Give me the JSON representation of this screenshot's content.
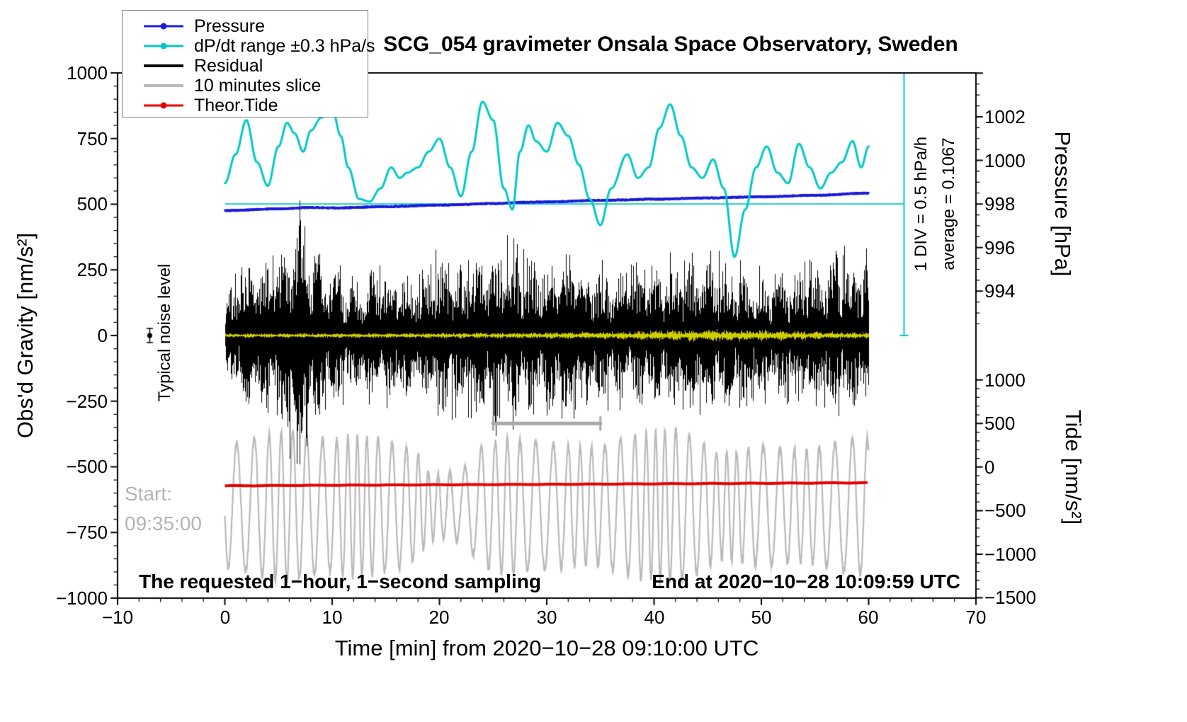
{
  "legend": {
    "items": [
      {
        "label": "Pressure",
        "color": "#1c1cdc",
        "marker": "dot"
      },
      {
        "label": "dP/dt range ±0.3 hPa/s",
        "color": "#00c8c8",
        "marker": "dot"
      },
      {
        "label": "Residual",
        "color": "#000000",
        "marker": "line"
      },
      {
        "label": "10 minutes slice",
        "color": "#b9b9b9",
        "marker": "line"
      },
      {
        "label": "Theor.Tide",
        "color": "#e80000",
        "marker": "dot"
      }
    ]
  },
  "annotations": {
    "noise_label": "Typical noise level",
    "start": {
      "line1": "Start:",
      "line2": "09:35:00"
    },
    "sampling_note": "The requested 1−hour, 1−second sampling",
    "end_note": "End at 2020−10−28 10:09:59 UTC"
  },
  "chart_data": {
    "type": "line",
    "title": "SCG_054 gravimeter Onsala Space Observatory, Sweden",
    "x_axis": {
      "label": "Time [min] from 2020−10−28 09:10:00 UTC",
      "range": [
        -10,
        70
      ],
      "ticks": [
        -10,
        0,
        10,
        20,
        30,
        40,
        50,
        60,
        70
      ],
      "tick_labels": [
        "−10",
        "0",
        "10",
        "20",
        "30",
        "40",
        "50",
        "60",
        "70"
      ],
      "minor_step": 2
    },
    "y_left": {
      "label": "Obs'd Gravity [nm/s²]",
      "range": [
        -1000,
        1000
      ],
      "ticks": [
        1000,
        750,
        500,
        250,
        0,
        -250,
        -500,
        -750,
        -1000
      ],
      "tick_labels": [
        "1000",
        "750",
        "500",
        "250",
        "0",
        "−250",
        "−500",
        "−750",
        "−1000"
      ],
      "minor_step": 50
    },
    "y_pressure": {
      "label": "Pressure [hPa]",
      "ticks": [
        1002,
        1000,
        998,
        996,
        994
      ],
      "tick_labels": [
        "1002",
        "1000",
        "998",
        "996",
        "994"
      ],
      "minor_step": 0.5,
      "gravity_per_hPa": 83,
      "anchor": {
        "hPa": 998,
        "gravity": 501
      }
    },
    "y_tide": {
      "label": "Tide [nm/s²]",
      "ticks": [
        1000,
        500,
        0,
        -500,
        -1000,
        -1500
      ],
      "tick_labels": [
        "1000",
        "500",
        "0",
        "−500",
        "−1000",
        "−1500"
      ],
      "minor_step": 100,
      "gravity_per_unit": 0.3316,
      "anchor": {
        "tide": 0,
        "gravity": -501
      }
    },
    "reference_lines": {
      "average_line": {
        "hPa": 998.0,
        "x_start": 0,
        "x_end": 63.3,
        "color": "#00c8c8"
      },
      "div_bar": {
        "x": 63.3,
        "gravity_start": 0,
        "gravity_end": 1000,
        "color": "#00c8c8",
        "label_div": "1 DIV = 0.5 hPa/h",
        "label_avg": "average = 0.1067"
      }
    },
    "marks": {
      "noise_marker": {
        "x": -7,
        "gravity": 0,
        "error": 27
      },
      "interval_bar": {
        "x_start": 25,
        "x_end": 35,
        "gravity": -335,
        "color": "#a8a8a8"
      }
    },
    "series": [
      {
        "name": "10 minutes slice",
        "color": "#b9b9b9",
        "axis": "gravity",
        "style": "oscillation",
        "x_range": [
          0,
          60
        ],
        "center": -650,
        "period_min": 1.25,
        "seed": 11,
        "envelope_x": [
          0,
          2,
          4,
          6,
          8,
          10,
          12,
          14,
          16,
          18,
          19,
          20,
          22,
          24,
          26,
          28,
          30,
          32,
          34,
          36,
          38,
          40,
          42,
          44,
          46,
          48,
          50,
          52,
          54,
          56,
          58,
          60
        ],
        "envelope": [
          230,
          250,
          270,
          290,
          260,
          250,
          270,
          260,
          240,
          200,
          130,
          120,
          130,
          230,
          260,
          250,
          240,
          230,
          220,
          240,
          270,
          280,
          290,
          260,
          200,
          210,
          230,
          220,
          210,
          230,
          250,
          260
        ]
      },
      {
        "name": "Theor.Tide",
        "color": "#e80000",
        "axis": "tide",
        "style": "thick-line",
        "anchors_x": [
          0,
          10,
          20,
          30,
          40,
          50,
          60
        ],
        "anchors": [
          -215,
          -209,
          -203,
          -198,
          -192,
          -186,
          -180
        ]
      },
      {
        "name": "Residual",
        "color": "#000000",
        "axis": "gravity",
        "style": "noise-band",
        "x_range": [
          0,
          60
        ],
        "seed": 7,
        "envelope_x": [
          0,
          1,
          2,
          3,
          5,
          6,
          7,
          8,
          9,
          10,
          12,
          14,
          16,
          18,
          20,
          22,
          24,
          26,
          28,
          30,
          32,
          34,
          36,
          38,
          40,
          42,
          44,
          46,
          48,
          50,
          52,
          54,
          56,
          58,
          60
        ],
        "envelope": [
          150,
          220,
          260,
          280,
          320,
          430,
          450,
          380,
          300,
          260,
          210,
          260,
          240,
          230,
          300,
          270,
          330,
          350,
          290,
          300,
          310,
          270,
          250,
          250,
          270,
          290,
          280,
          310,
          250,
          230,
          230,
          260,
          280,
          300,
          320
        ]
      },
      {
        "name": "Residual (smoothed)",
        "color": "#d0d000",
        "axis": "gravity",
        "style": "noise-band",
        "x_range": [
          0,
          60
        ],
        "seed": 13,
        "envelope_x": [
          0,
          10,
          20,
          30,
          38,
          45,
          50,
          55,
          60
        ],
        "envelope": [
          8,
          9,
          10,
          12,
          16,
          22,
          20,
          15,
          12
        ]
      },
      {
        "name": "Pressure",
        "color": "#1c1cdc",
        "axis": "pressure",
        "style": "dots",
        "x_range": [
          0,
          60
        ],
        "noise_hPa": 0.03,
        "seed": 5,
        "anchors_x": [
          0,
          5,
          8,
          10,
          15,
          20,
          25,
          28,
          30,
          35,
          40,
          45,
          50,
          55,
          60
        ],
        "anchors": [
          997.7,
          997.78,
          997.84,
          997.82,
          997.88,
          997.95,
          998.02,
          998.08,
          998.1,
          998.17,
          998.22,
          998.28,
          998.33,
          998.4,
          998.5
        ]
      },
      {
        "name": "dP/dt range ±0.3 hPa/s",
        "color": "#00c8c8",
        "axis": "gravity",
        "style": "smooth",
        "anchors_x": [
          0,
          1,
          2,
          3,
          4,
          5,
          5.8,
          6.5,
          7.3,
          8,
          9,
          10,
          10.8,
          11.5,
          12.5,
          13.5,
          14.5,
          15.5,
          16.3,
          17,
          18,
          19,
          20,
          21,
          22,
          23,
          24,
          25,
          26,
          26.8,
          27.5,
          28.3,
          29,
          30,
          31,
          32,
          33,
          34,
          35,
          36,
          37.5,
          38.5,
          39.5,
          40.5,
          41.5,
          42.5,
          43.5,
          44.5,
          45.5,
          46.5,
          47.5,
          48.5,
          49.5,
          50.5,
          51.5,
          52.5,
          53.5,
          54.5,
          55.5,
          56.5,
          57.5,
          58.5,
          59.3,
          60
        ],
        "anchors": [
          580,
          690,
          820,
          660,
          570,
          720,
          810,
          770,
          700,
          780,
          830,
          865,
          760,
          640,
          520,
          510,
          560,
          640,
          600,
          620,
          640,
          700,
          750,
          640,
          530,
          700,
          890,
          820,
          560,
          480,
          700,
          800,
          740,
          700,
          810,
          760,
          650,
          520,
          420,
          560,
          690,
          600,
          640,
          790,
          880,
          760,
          640,
          600,
          670,
          560,
          300,
          480,
          640,
          720,
          620,
          580,
          730,
          640,
          560,
          620,
          660,
          740,
          640,
          720
        ]
      }
    ]
  }
}
